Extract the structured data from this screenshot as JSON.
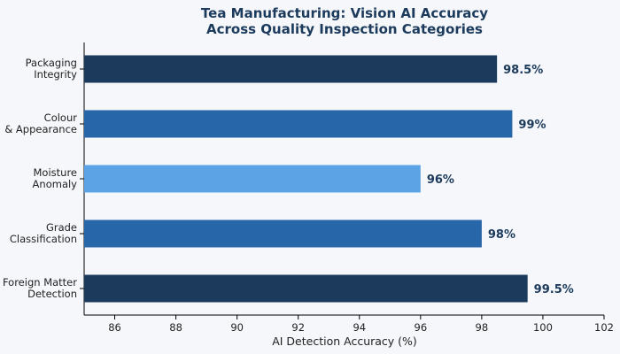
{
  "chart_data": {
    "type": "bar",
    "orientation": "horizontal",
    "title": [
      "Tea Manufacturing: Vision AI Accuracy",
      "Across Quality Inspection Categories"
    ],
    "xlabel": "AI Detection Accuracy (%)",
    "ylabel": "",
    "xlim": [
      85,
      102
    ],
    "xticks": [
      86,
      88,
      90,
      92,
      94,
      96,
      98,
      100,
      102
    ],
    "grid": false,
    "bars": [
      {
        "label": [
          "Packaging",
          "Integrity"
        ],
        "value": 98.5,
        "value_label": "98.5%",
        "color": "#1b3a5c"
      },
      {
        "label": [
          "Colour",
          "& Appearance"
        ],
        "value": 99,
        "value_label": "99%",
        "color": "#2766a8"
      },
      {
        "label": [
          "Moisture",
          "Anomaly"
        ],
        "value": 96,
        "value_label": "96%",
        "color": "#5ba3e4"
      },
      {
        "label": [
          "Grade",
          "Classification"
        ],
        "value": 98,
        "value_label": "98%",
        "color": "#2766a8"
      },
      {
        "label": [
          "Foreign Matter",
          "Detection"
        ],
        "value": 99.5,
        "value_label": "99.5%",
        "color": "#1b3a5c"
      }
    ]
  }
}
